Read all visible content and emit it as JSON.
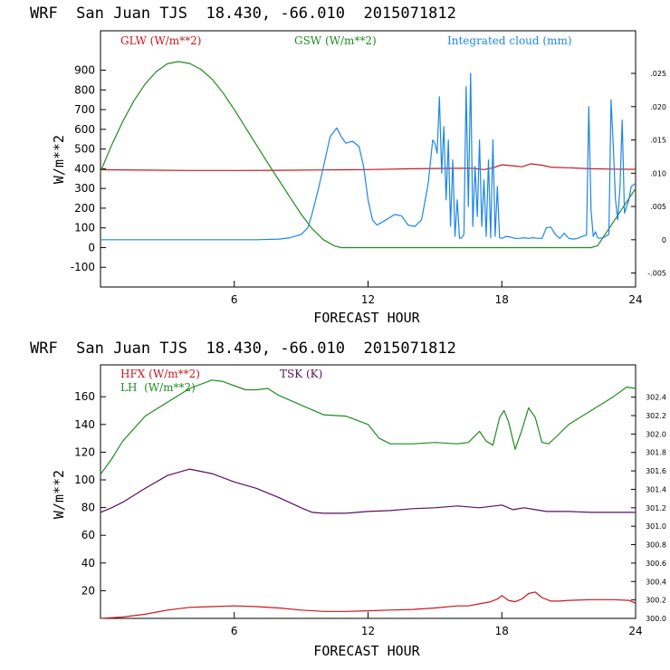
{
  "chart_data": [
    {
      "type": "line",
      "title": "WRF  San Juan TJS  18.430, -66.010  2015071812",
      "xlabel": "FORECAST HOUR",
      "ylabel": "W/m**2",
      "xlim": [
        0,
        24
      ],
      "ylim": [
        -200,
        1100
      ],
      "x_ticks": [
        6,
        12,
        18,
        24
      ],
      "y_ticks": [
        -100,
        0,
        100,
        200,
        300,
        400,
        500,
        600,
        700,
        800,
        900
      ],
      "y2_ticks": [
        "-.005",
        "0",
        ".005",
        ".010",
        ".015",
        ".020",
        ".025"
      ],
      "y2_values": [
        -0.005,
        0,
        0.005,
        0.01,
        0.015,
        0.02,
        0.025
      ],
      "y2lim": [
        -0.0071,
        0.0314
      ],
      "grid": false,
      "legend_position": "top",
      "series": [
        {
          "name": "GLW (W/m**2)",
          "color": "#c8181e",
          "axis": "left",
          "x": [
            0,
            2,
            4,
            6,
            8,
            10,
            12,
            14,
            16,
            16.7,
            17.2,
            17.6,
            18.0,
            18.5,
            18.9,
            19.3,
            19.8,
            20.2,
            21,
            22,
            23,
            24
          ],
          "y": [
            395,
            393,
            391,
            391,
            392,
            394,
            396,
            400,
            402,
            402,
            396,
            405,
            420,
            415,
            410,
            425,
            418,
            408,
            405,
            400,
            398,
            397
          ]
        },
        {
          "name": "GSW (W/m**2)",
          "color": "#1f8c1f",
          "axis": "left",
          "x": [
            0,
            0.5,
            1,
            1.5,
            2,
            2.5,
            3,
            3.5,
            4,
            4.5,
            5,
            5.5,
            6,
            6.5,
            7,
            7.5,
            8,
            8.5,
            9,
            9.5,
            10,
            10.5,
            10.8,
            11,
            12,
            14,
            16,
            18,
            20,
            22,
            22.3,
            23,
            24
          ],
          "y": [
            385,
            520,
            640,
            745,
            830,
            893,
            933,
            944,
            934,
            905,
            855,
            785,
            700,
            610,
            520,
            430,
            342,
            255,
            170,
            95,
            40,
            8,
            0,
            0,
            0,
            0,
            0,
            0,
            0,
            0,
            10,
            130,
            300
          ]
        },
        {
          "name": "Integrated cloud (mm)",
          "color": "#1e86e6",
          "axis": "right",
          "x": [
            0,
            2,
            4,
            6,
            7,
            8,
            8.5,
            9,
            9.3,
            9.5,
            9.8,
            10,
            10.3,
            10.6,
            10.8,
            11,
            11.3,
            11.6,
            11.8,
            12,
            12.2,
            12.4,
            12.8,
            13.2,
            13.5,
            13.8,
            14.1,
            14.4,
            14.7,
            14.9,
            15.0,
            15.1,
            15.2,
            15.3,
            15.4,
            15.5,
            15.6,
            15.7,
            15.8,
            15.9,
            16.0,
            16.1,
            16.2,
            16.3,
            16.4,
            16.5,
            16.6,
            16.7,
            16.8,
            16.9,
            17.0,
            17.1,
            17.2,
            17.3,
            17.4,
            17.5,
            17.6,
            17.7,
            17.8,
            17.9,
            18.0,
            18.2,
            18.4,
            18.6,
            18.8,
            19.0,
            19.2,
            19.4,
            19.6,
            19.8,
            20.0,
            20.2,
            20.4,
            20.6,
            20.8,
            21.0,
            21.2,
            21.4,
            21.6,
            21.8,
            21.9,
            22.0,
            22.1,
            22.2,
            22.3,
            22.4,
            22.6,
            22.8,
            22.9,
            23.0,
            23.1,
            23.2,
            23.3,
            23.4,
            23.5,
            23.7,
            23.8,
            24.0
          ],
          "y": [
            0,
            0,
            0,
            0,
            0,
            0.0001,
            0.0003,
            0.0008,
            0.0018,
            0.004,
            0.008,
            0.011,
            0.0155,
            0.0168,
            0.0155,
            0.0145,
            0.0148,
            0.014,
            0.011,
            0.006,
            0.003,
            0.0022,
            0.003,
            0.0038,
            0.0036,
            0.0022,
            0.002,
            0.003,
            0.0085,
            0.015,
            0.0145,
            0.013,
            0.0215,
            0.01,
            0.017,
            0.006,
            0.015,
            0.002,
            0.012,
            0.0005,
            0.006,
            0.0002,
            0.0003,
            0.0008,
            0.023,
            0.005,
            0.025,
            0.002,
            0.011,
            0.0035,
            0.015,
            0.002,
            0.009,
            0.0005,
            0.012,
            0.0003,
            0.015,
            0.0005,
            0.008,
            0.0003,
            0.0002,
            0.0005,
            0.0004,
            0.0002,
            0.0002,
            0.0003,
            0.0002,
            0.0003,
            0.0002,
            0.0002,
            0.0018,
            0.0019,
            0.0008,
            0.0002,
            0.001,
            0.0002,
            0.0001,
            0.0002,
            0.0005,
            0.0007,
            0.02,
            0.0045,
            0.0005,
            0.0012,
            0.0003,
            0.0002,
            0.0004,
            0.0008,
            0.021,
            0.014,
            0.006,
            0.003,
            0.008,
            0.018,
            0.004,
            0.006,
            0.008,
            0.0085
          ]
        }
      ]
    },
    {
      "type": "line",
      "title": "WRF  San Juan TJS  18.430, -66.010  2015071812",
      "xlabel": "FORECAST HOUR",
      "ylabel": "W/m**2",
      "xlim": [
        0,
        24
      ],
      "ylim": [
        0,
        183
      ],
      "x_ticks": [
        6,
        12,
        18,
        24
      ],
      "y_ticks": [
        20,
        40,
        60,
        80,
        100,
        120,
        140,
        160
      ],
      "y2_ticks": [
        "300.0",
        "300.2",
        "300.4",
        "300.6",
        "300.8",
        "301.0",
        "301.2",
        "301.4",
        "301.6",
        "301.8",
        "302.0",
        "302.2",
        "302.4"
      ],
      "y2_values": [
        300.0,
        300.2,
        300.4,
        300.6,
        300.8,
        301.0,
        301.2,
        301.4,
        301.6,
        301.8,
        302.0,
        302.2,
        302.4
      ],
      "y2lim": [
        300.0,
        302.75
      ],
      "grid": false,
      "legend_position": "top",
      "series": [
        {
          "name": "HFX (W/m**2)",
          "color": "#c8181e",
          "axis": "left",
          "x": [
            0,
            1,
            2,
            3,
            4,
            5,
            6,
            7,
            8,
            9,
            10,
            11,
            12,
            13,
            14,
            15,
            16,
            16.5,
            17,
            17.5,
            17.8,
            18.0,
            18.3,
            18.6,
            18.9,
            19.2,
            19.5,
            19.8,
            20.2,
            20.6,
            21,
            22,
            23,
            23.7,
            24
          ],
          "y": [
            0,
            1,
            3,
            6,
            8,
            8.5,
            9,
            8.5,
            7.5,
            6,
            5,
            5,
            5.5,
            6,
            6.5,
            7.5,
            9,
            9,
            10.5,
            12,
            14,
            16.5,
            13,
            12,
            14,
            18,
            19,
            15,
            12.5,
            12.5,
            13,
            13.5,
            13.5,
            13,
            11
          ]
        },
        {
          "name": "LH  (W/m**2)",
          "color": "#1f8c1f",
          "axis": "left",
          "x": [
            0,
            0.5,
            1,
            2,
            3,
            4,
            5,
            5.5,
            6,
            6.5,
            7,
            7.5,
            8,
            9,
            10,
            11,
            12,
            12.5,
            13,
            14,
            15,
            16,
            16.5,
            17,
            17.3,
            17.6,
            17.9,
            18.1,
            18.3,
            18.6,
            18.9,
            19.2,
            19.5,
            19.8,
            20.1,
            20.5,
            21,
            22,
            23,
            23.6,
            24
          ],
          "y": [
            104,
            115,
            128,
            146,
            156,
            166,
            172,
            171,
            168,
            165,
            165,
            166,
            161,
            154,
            147,
            146,
            140,
            130,
            126,
            126,
            127,
            126,
            127,
            135,
            128,
            125,
            145,
            150,
            142,
            122,
            136,
            152,
            145,
            127,
            126,
            132,
            140,
            150,
            160,
            167,
            166
          ]
        },
        {
          "name": "TSK (K)",
          "color": "#5a0f5e",
          "axis": "right",
          "x": [
            0,
            0.5,
            1,
            2,
            3,
            4,
            5,
            6,
            7,
            8,
            9,
            9.5,
            10,
            11,
            12,
            13,
            14,
            15,
            16,
            17,
            18,
            18.5,
            19,
            19.5,
            20,
            21,
            22,
            23,
            24
          ],
          "y": [
            301.15,
            301.2,
            301.26,
            301.41,
            301.55,
            301.62,
            301.57,
            301.48,
            301.41,
            301.31,
            301.2,
            301.15,
            301.14,
            301.14,
            301.16,
            301.17,
            301.19,
            301.2,
            301.22,
            301.2,
            301.23,
            301.18,
            301.2,
            301.18,
            301.16,
            301.16,
            301.15,
            301.15,
            301.15
          ]
        }
      ]
    }
  ]
}
